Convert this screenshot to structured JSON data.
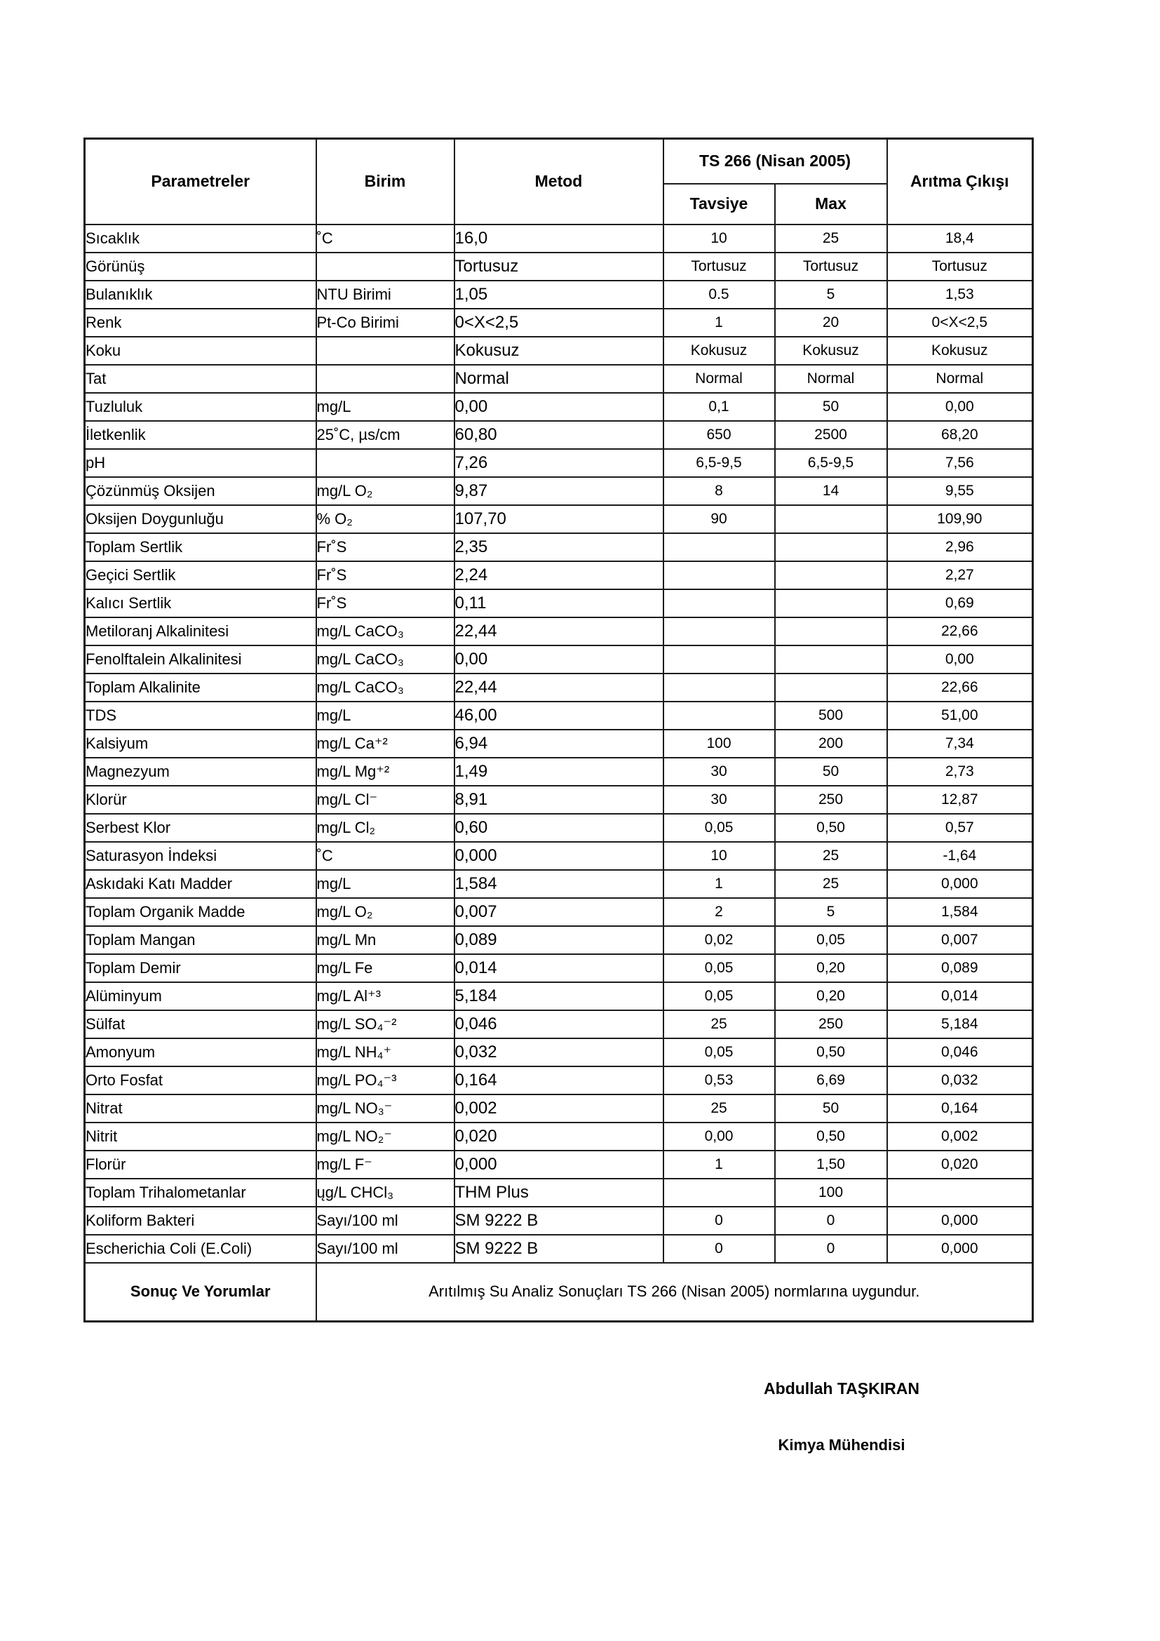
{
  "table": {
    "headers": {
      "parametreler": "Parametreler",
      "birim": "Birim",
      "metod": "Metod",
      "ts266": "TS 266 (Nisan 2005)",
      "tavsiye": "Tavsiye",
      "max": "Max",
      "aritma": "Arıtma Çıkışı"
    },
    "rows": [
      {
        "param": "Sıcaklık",
        "birim": "˚C",
        "metod": "16,0",
        "tavsiye": "10",
        "max": "25",
        "aritma": "18,4"
      },
      {
        "param": "Görünüş",
        "birim": "",
        "metod": "Tortusuz",
        "tavsiye": "Tortusuz",
        "max": "Tortusuz",
        "aritma": "Tortusuz"
      },
      {
        "param": "Bulanıklık",
        "birim": "NTU Birimi",
        "metod": "1,05",
        "tavsiye": "0.5",
        "max": "5",
        "aritma": "1,53"
      },
      {
        "param": "Renk",
        "birim": "Pt-Co Birimi",
        "metod": "0<X<2,5",
        "tavsiye": "1",
        "max": "20",
        "aritma": "0<X<2,5"
      },
      {
        "param": "Koku",
        "birim": "",
        "metod": "Kokusuz",
        "tavsiye": "Kokusuz",
        "max": "Kokusuz",
        "aritma": "Kokusuz"
      },
      {
        "param": "Tat",
        "birim": "",
        "metod": "Normal",
        "tavsiye": "Normal",
        "max": "Normal",
        "aritma": "Normal"
      },
      {
        "param": "Tuzluluk",
        "birim": "mg/L",
        "metod": "0,00",
        "tavsiye": "0,1",
        "max": "50",
        "aritma": "0,00"
      },
      {
        "param": "İletkenlik",
        "birim": "25˚C, µs/cm",
        "metod": "60,80",
        "tavsiye": "650",
        "max": "2500",
        "aritma": "68,20"
      },
      {
        "param": "pH",
        "birim": "",
        "metod": "7,26",
        "tavsiye": "6,5-9,5",
        "max": "6,5-9,5",
        "aritma": "7,56"
      },
      {
        "param": "Çözünmüş Oksijen",
        "birim": "mg/L O₂",
        "metod": "9,87",
        "tavsiye": "8",
        "max": "14",
        "aritma": "9,55"
      },
      {
        "param": "Oksijen Doygunluğu",
        "birim": "% O₂",
        "metod": "107,70",
        "tavsiye": "90",
        "max": "",
        "aritma": "109,90"
      },
      {
        "param": "Toplam Sertlik",
        "birim": "Fr˚S",
        "metod": "2,35",
        "tavsiye": "",
        "max": "",
        "aritma": "2,96"
      },
      {
        "param": "Geçici Sertlik",
        "birim": "Fr˚S",
        "metod": "2,24",
        "tavsiye": "",
        "max": "",
        "aritma": "2,27"
      },
      {
        "param": "Kalıcı Sertlik",
        "birim": "Fr˚S",
        "metod": "0,11",
        "tavsiye": "",
        "max": "",
        "aritma": "0,69"
      },
      {
        "param": "Metiloranj Alkalinitesi",
        "birim": "mg/L CaCO₃",
        "metod": "22,44",
        "tavsiye": "",
        "max": "",
        "aritma": "22,66"
      },
      {
        "param": "Fenolftalein Alkalinitesi",
        "birim": "mg/L CaCO₃",
        "metod": "0,00",
        "tavsiye": "",
        "max": "",
        "aritma": "0,00"
      },
      {
        "param": "Toplam Alkalinite",
        "birim": "mg/L CaCO₃",
        "metod": "22,44",
        "tavsiye": "",
        "max": "",
        "aritma": "22,66"
      },
      {
        "param": "TDS",
        "birim": "mg/L",
        "metod": "46,00",
        "tavsiye": "",
        "max": "500",
        "aritma": "51,00"
      },
      {
        "param": "Kalsiyum",
        "birim": "mg/L Ca⁺²",
        "metod": "6,94",
        "tavsiye": "100",
        "max": "200",
        "aritma": "7,34"
      },
      {
        "param": "Magnezyum",
        "birim": "mg/L Mg⁺²",
        "metod": "1,49",
        "tavsiye": "30",
        "max": "50",
        "aritma": "2,73"
      },
      {
        "param": "Klorür",
        "birim": "mg/L Cl⁻",
        "metod": "8,91",
        "tavsiye": "30",
        "max": "250",
        "aritma": "12,87"
      },
      {
        "param": "Serbest Klor",
        "birim": "mg/L Cl₂",
        "metod": "0,60",
        "tavsiye": "0,05",
        "max": "0,50",
        "aritma": "0,57"
      },
      {
        "param": "Saturasyon İndeksi",
        "birim": "˚C",
        "metod": "0,000",
        "tavsiye": "10",
        "max": "25",
        "aritma": "-1,64"
      },
      {
        "param": "Askıdaki Katı Madder",
        "birim": "mg/L",
        "metod": "1,584",
        "tavsiye": "1",
        "max": "25",
        "aritma": "0,000"
      },
      {
        "param": "Toplam Organik Madde",
        "birim": "mg/L O₂",
        "metod": "0,007",
        "tavsiye": "2",
        "max": "5",
        "aritma": "1,584"
      },
      {
        "param": "Toplam Mangan",
        "birim": "mg/L Mn",
        "metod": "0,089",
        "tavsiye": "0,02",
        "max": "0,05",
        "aritma": "0,007"
      },
      {
        "param": "Toplam Demir",
        "birim": "mg/L Fe",
        "metod": "0,014",
        "tavsiye": "0,05",
        "max": "0,20",
        "aritma": "0,089"
      },
      {
        "param": "Alüminyum",
        "birim": "mg/L Al⁺³",
        "metod": "5,184",
        "tavsiye": "0,05",
        "max": "0,20",
        "aritma": "0,014"
      },
      {
        "param": "Sülfat",
        "birim": "mg/L SO₄⁻²",
        "metod": "0,046",
        "tavsiye": "25",
        "max": "250",
        "aritma": "5,184"
      },
      {
        "param": "Amonyum",
        "birim": "mg/L NH₄⁺",
        "metod": "0,032",
        "tavsiye": "0,05",
        "max": "0,50",
        "aritma": "0,046"
      },
      {
        "param": "Orto Fosfat",
        "birim": "mg/L PO₄⁻³",
        "metod": "0,164",
        "tavsiye": "0,53",
        "max": "6,69",
        "aritma": "0,032"
      },
      {
        "param": "Nitrat",
        "birim": "mg/L NO₃⁻",
        "metod": "0,002",
        "tavsiye": "25",
        "max": "50",
        "aritma": "0,164"
      },
      {
        "param": "Nitrit",
        "birim": "mg/L NO₂⁻",
        "metod": "0,020",
        "tavsiye": "0,00",
        "max": "0,50",
        "aritma": "0,002"
      },
      {
        "param": "Florür",
        "birim": "mg/L F⁻",
        "metod": "0,000",
        "tavsiye": "1",
        "max": "1,50",
        "aritma": "0,020"
      },
      {
        "param": "Toplam Trihalometanlar",
        "birim": "ųg/L CHCl₃",
        "metod": "THM Plus",
        "tavsiye": "",
        "max": "100",
        "aritma": ""
      },
      {
        "param": "Koliform Bakteri",
        "birim": "Sayı/100 ml",
        "metod": "SM 9222 B",
        "tavsiye": "0",
        "max": "0",
        "aritma": "0,000"
      },
      {
        "param": "Escherichia Coli (E.Coli)",
        "birim": "Sayı/100 ml",
        "metod": "SM 9222 B",
        "tavsiye": "0",
        "max": "0",
        "aritma": "0,000"
      }
    ],
    "footer": {
      "label": "Sonuç Ve Yorumlar",
      "comment": "Arıtılmış Su Analiz Sonuçları  TS  266 (Nisan 2005) normlarına uygundur."
    }
  },
  "signature": {
    "name": "Abdullah TAŞKIRAN",
    "title": "Kimya Mühendisi"
  }
}
